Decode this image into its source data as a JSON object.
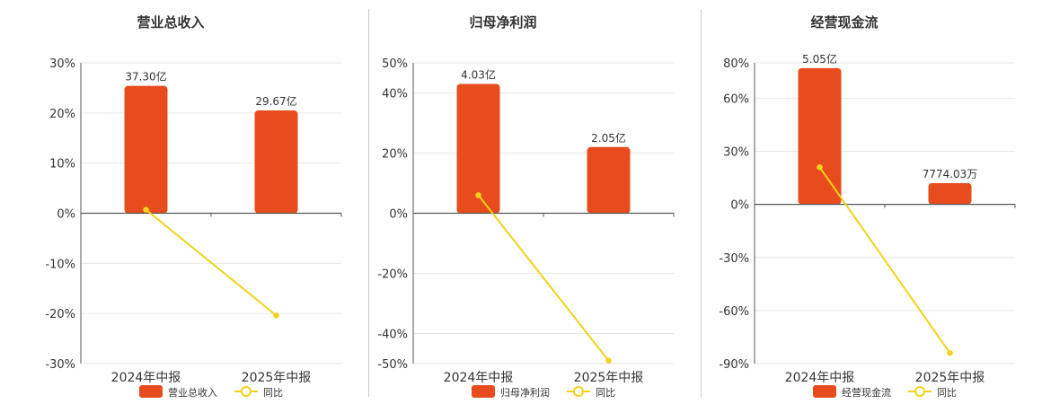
{
  "colors": {
    "bar": "#E84C1C",
    "line": "#F2D21A",
    "grid": "#e6e6e6",
    "axis": "#555555"
  },
  "legend_line_label": "同比",
  "chart_data": [
    {
      "type": "bar",
      "title": "营业总收入",
      "categories": [
        "2024年中报",
        "2025年中报"
      ],
      "bar_series": {
        "name": "营业总收入",
        "values": [
          25.4,
          20.5
        ],
        "labels": [
          "37.30亿",
          "29.67亿"
        ]
      },
      "line_series": {
        "name": "同比",
        "values": [
          0.7,
          -20.4
        ]
      },
      "ylim": [
        -30,
        30
      ],
      "yticks": [
        30,
        20,
        10,
        0,
        -10,
        -20,
        -30
      ],
      "ytick_labels": [
        "30%",
        "20%",
        "10%",
        "0%",
        "-10%",
        "-20%",
        "-30%"
      ],
      "grid": true,
      "legend_position": "bottom"
    },
    {
      "type": "bar",
      "title": "归母净利润",
      "categories": [
        "2024年中报",
        "2025年中报"
      ],
      "bar_series": {
        "name": "归母净利润",
        "values": [
          43,
          22
        ],
        "labels": [
          "4.03亿",
          "2.05亿"
        ]
      },
      "line_series": {
        "name": "同比",
        "values": [
          6,
          -49
        ]
      },
      "ylim": [
        -50,
        50
      ],
      "yticks": [
        50,
        40,
        20,
        0,
        -20,
        -40,
        -50
      ],
      "ytick_labels": [
        "50%",
        "40%",
        "20%",
        "0%",
        "-20%",
        "-40%",
        "-50%"
      ],
      "grid": true,
      "legend_position": "bottom"
    },
    {
      "type": "bar",
      "title": "经营现金流",
      "categories": [
        "2024年中报",
        "2025年中报"
      ],
      "bar_series": {
        "name": "经营现金流",
        "values": [
          77,
          12
        ],
        "labels": [
          "5.05亿",
          "7774.03万"
        ]
      },
      "line_series": {
        "name": "同比",
        "values": [
          21,
          -84
        ]
      },
      "ylim": [
        -90,
        80
      ],
      "yticks": [
        80,
        60,
        30,
        0,
        -30,
        -60,
        -90
      ],
      "ytick_labels": [
        "80%",
        "60%",
        "30%",
        "0%",
        "-30%",
        "-60%",
        "-90%"
      ],
      "grid": true,
      "legend_position": "bottom"
    }
  ]
}
